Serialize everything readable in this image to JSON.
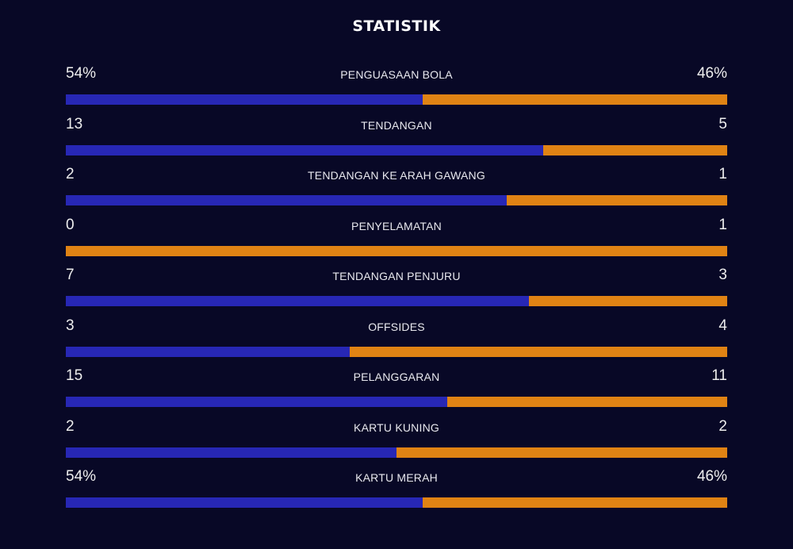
{
  "title": "STATISTIK",
  "colors": {
    "background": "#080826",
    "home": "#2727b5",
    "away": "#e08314"
  },
  "stats": [
    {
      "label": "PENGUASAAN BOLA",
      "home": "54%",
      "away": "46%",
      "home_share": 0.54
    },
    {
      "label": "TENDANGAN",
      "home": "13",
      "away": "5",
      "home_share": 0.722
    },
    {
      "label": "TENDANGAN KE ARAH GAWANG",
      "home": "2",
      "away": "1",
      "home_share": 0.667
    },
    {
      "label": "PENYELAMATAN",
      "home": "0",
      "away": "1",
      "home_share": 0
    },
    {
      "label": "TENDANGAN PENJURU",
      "home": "7",
      "away": "3",
      "home_share": 0.7
    },
    {
      "label": "OFFSIDES",
      "home": "3",
      "away": "4",
      "home_share": 0.429
    },
    {
      "label": "PELANGGARAN",
      "home": "15",
      "away": "11",
      "home_share": 0.577
    },
    {
      "label": "KARTU KUNING",
      "home": "2",
      "away": "2",
      "home_share": 0.5
    },
    {
      "label": "KARTU MERAH",
      "home": "54%",
      "away": "46%",
      "home_share": 0.54
    }
  ]
}
